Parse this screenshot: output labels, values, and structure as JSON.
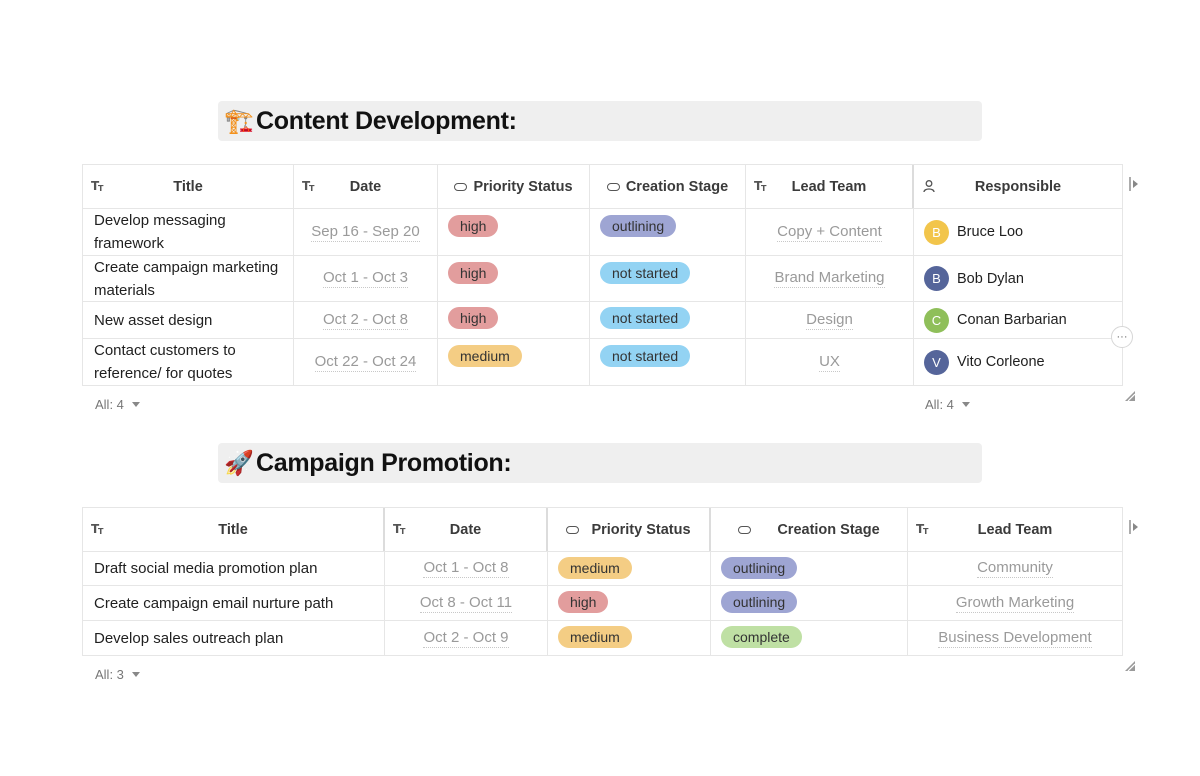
{
  "sections": [
    {
      "emoji": "🏗️",
      "heading": "Content Development:",
      "columns": [
        "Title",
        "Date",
        "Priority Status",
        "Creation Stage",
        "Lead Team",
        "Responsible"
      ],
      "rows": [
        {
          "title": "Develop messaging framework",
          "date": "Sep 16 - Sep 20",
          "priority": "high",
          "stage": "outlining",
          "team": "Copy + Content",
          "responsible": "Bruce Loo",
          "initial": "B",
          "avatar_color": "#f2c54b"
        },
        {
          "title": "Create campaign marketing materials",
          "date": "Oct 1 - Oct 3",
          "priority": "high",
          "stage": "not started",
          "team": "Brand Marketing",
          "responsible": "Bob Dylan",
          "initial": "B",
          "avatar_color": "#55659a"
        },
        {
          "title": "New asset design",
          "date": "Oct 2 - Oct 8",
          "priority": "high",
          "stage": "not started",
          "team": "Design",
          "responsible": "Conan Barbarian",
          "initial": "C",
          "avatar_color": "#8fbf5a"
        },
        {
          "title": "Contact customers to reference/ for quotes",
          "date": "Oct 22 - Oct 24",
          "priority": "medium",
          "stage": "not started",
          "team": "UX",
          "responsible": "Vito Corleone",
          "initial": "V",
          "avatar_color": "#55659a"
        }
      ],
      "footer_left": "All: 4",
      "footer_right": "All: 4"
    },
    {
      "emoji": "🚀",
      "heading": "Campaign Promotion:",
      "columns": [
        "Title",
        "Date",
        "Priority Status",
        "Creation Stage",
        "Lead Team"
      ],
      "rows": [
        {
          "title": "Draft social media promotion plan",
          "date": "Oct 1 - Oct 8",
          "priority": "medium",
          "stage": "outlining",
          "team": "Community"
        },
        {
          "title": "Create campaign email nurture path",
          "date": "Oct 8 - Oct 11",
          "priority": "high",
          "stage": "outlining",
          "team": "Growth Marketing"
        },
        {
          "title": "Develop sales outreach plan",
          "date": "Oct 2 - Oct 9",
          "priority": "medium",
          "stage": "complete",
          "team": "Business Development"
        }
      ],
      "footer_left": "All: 3"
    }
  ],
  "more_button": "···",
  "colors": {
    "high": "#e29d9d",
    "medium": "#f4cd84",
    "outlining": "#9ea5d3",
    "not_started": "#93d3f3",
    "complete": "#bfe0a4"
  }
}
